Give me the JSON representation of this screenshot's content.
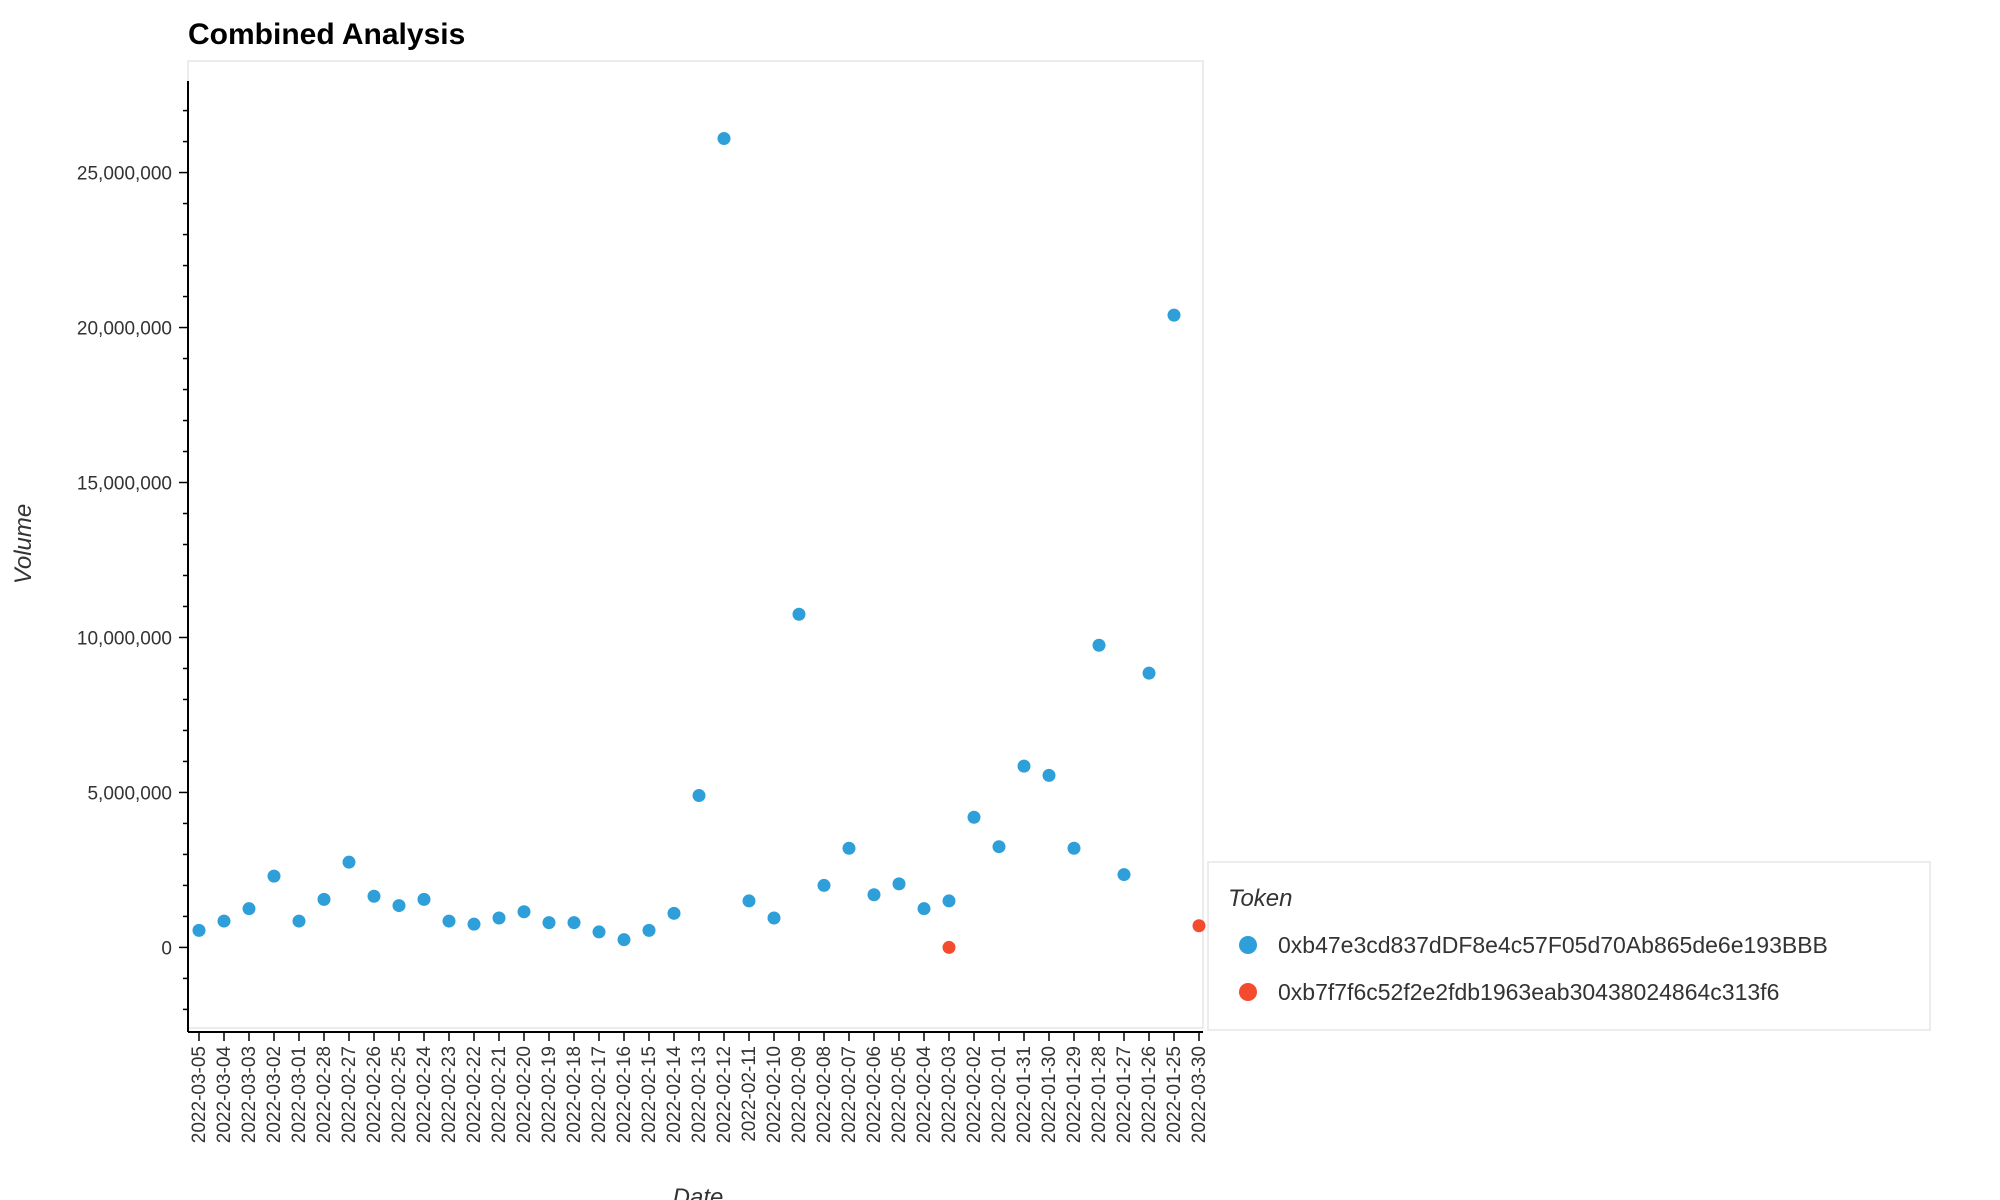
{
  "chart_data": {
    "type": "scatter",
    "title": "Combined Analysis",
    "xlabel": "Date",
    "ylabel": "Volume",
    "ylim": [
      -2600000,
      28600000
    ],
    "yticks": [
      0,
      5000000,
      10000000,
      15000000,
      20000000,
      25000000
    ],
    "ytick_labels": [
      "0",
      "5,000,000",
      "10,000,000",
      "15,000,000",
      "20,000,000",
      "25,000,000"
    ],
    "grid": false,
    "legend_title": "Token",
    "legend_position": "right",
    "categories": [
      "2022-03-05",
      "2022-03-04",
      "2022-03-03",
      "2022-03-02",
      "2022-03-01",
      "2022-02-28",
      "2022-02-27",
      "2022-02-26",
      "2022-02-25",
      "2022-02-24",
      "2022-02-23",
      "2022-02-22",
      "2022-02-21",
      "2022-02-20",
      "2022-02-19",
      "2022-02-18",
      "2022-02-17",
      "2022-02-16",
      "2022-02-15",
      "2022-02-14",
      "2022-02-13",
      "2022-02-12",
      "2022-02-11",
      "2022-02-10",
      "2022-02-09",
      "2022-02-08",
      "2022-02-07",
      "2022-02-06",
      "2022-02-05",
      "2022-02-04",
      "2022-02-03",
      "2022-02-02",
      "2022-02-01",
      "2022-01-31",
      "2022-01-30",
      "2022-01-29",
      "2022-01-28",
      "2022-01-27",
      "2022-01-26",
      "2022-01-25",
      "2022-03-30"
    ],
    "series": [
      {
        "name": "0xb47e3cd837dDF8e4c57F05d70Ab865de6e193BBB",
        "color": "#2e9fd8",
        "points": [
          [
            "2022-03-05",
            550000
          ],
          [
            "2022-03-04",
            850000
          ],
          [
            "2022-03-03",
            1250000
          ],
          [
            "2022-03-02",
            2300000
          ],
          [
            "2022-03-01",
            850000
          ],
          [
            "2022-02-28",
            1550000
          ],
          [
            "2022-02-27",
            2750000
          ],
          [
            "2022-02-26",
            1650000
          ],
          [
            "2022-02-25",
            1350000
          ],
          [
            "2022-02-24",
            1550000
          ],
          [
            "2022-02-23",
            850000
          ],
          [
            "2022-02-22",
            750000
          ],
          [
            "2022-02-21",
            950000
          ],
          [
            "2022-02-20",
            1150000
          ],
          [
            "2022-02-19",
            800000
          ],
          [
            "2022-02-18",
            800000
          ],
          [
            "2022-02-17",
            500000
          ],
          [
            "2022-02-16",
            250000
          ],
          [
            "2022-02-15",
            550000
          ],
          [
            "2022-02-14",
            1100000
          ],
          [
            "2022-02-13",
            4900000
          ],
          [
            "2022-02-12",
            26100000
          ],
          [
            "2022-02-11",
            1500000
          ],
          [
            "2022-02-10",
            950000
          ],
          [
            "2022-02-09",
            10750000
          ],
          [
            "2022-02-08",
            2000000
          ],
          [
            "2022-02-07",
            3200000
          ],
          [
            "2022-02-06",
            1700000
          ],
          [
            "2022-02-05",
            2050000
          ],
          [
            "2022-02-04",
            1250000
          ],
          [
            "2022-02-03",
            1500000
          ],
          [
            "2022-02-02",
            4200000
          ],
          [
            "2022-02-01",
            3250000
          ],
          [
            "2022-01-31",
            5850000
          ],
          [
            "2022-01-30",
            5550000
          ],
          [
            "2022-01-29",
            3200000
          ],
          [
            "2022-01-28",
            9750000
          ],
          [
            "2022-01-27",
            2350000
          ],
          [
            "2022-01-26",
            8850000
          ],
          [
            "2022-01-25",
            20400000
          ]
        ]
      },
      {
        "name": "0xb7f7f6c52f2e2fdb1963eab30438024864c313f6",
        "color": "#f44b2e",
        "points": [
          [
            "2022-02-03",
            0
          ],
          [
            "2022-03-30",
            700000
          ]
        ]
      }
    ]
  }
}
